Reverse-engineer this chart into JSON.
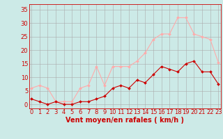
{
  "hours": [
    0,
    1,
    2,
    3,
    4,
    5,
    6,
    7,
    8,
    9,
    10,
    11,
    12,
    13,
    14,
    15,
    16,
    17,
    18,
    19,
    20,
    21,
    22,
    23
  ],
  "wind_avg": [
    2,
    1,
    0,
    1,
    0,
    0,
    1,
    1,
    2,
    3,
    6,
    7,
    6,
    9,
    8,
    11,
    14,
    13,
    12,
    15,
    16,
    12,
    12,
    7.5
  ],
  "wind_gust": [
    6,
    7,
    6,
    1,
    1,
    1,
    6,
    7,
    14,
    7,
    14,
    14,
    14,
    16,
    19,
    24,
    26,
    26,
    32,
    32,
    26,
    25,
    24,
    15.5
  ],
  "line_avg_color": "#cc0000",
  "line_gust_color": "#ffaaaa",
  "marker_size": 2.0,
  "bg_color": "#cceae7",
  "grid_color": "#aaaaaa",
  "xlabel": "Vent moyen/en rafales ( km/h )",
  "xlabel_color": "#cc0000",
  "xlabel_fontsize": 7,
  "ytick_labels": [
    "0",
    "5",
    "10",
    "15",
    "20",
    "25",
    "30",
    "35"
  ],
  "ytick_vals": [
    0,
    5,
    10,
    15,
    20,
    25,
    30,
    35
  ],
  "ylim": [
    -1.5,
    37
  ],
  "xlim": [
    -0.3,
    23.3
  ],
  "tick_fontsize": 6,
  "axis_label_color": "#cc0000",
  "spine_color": "#cc0000"
}
